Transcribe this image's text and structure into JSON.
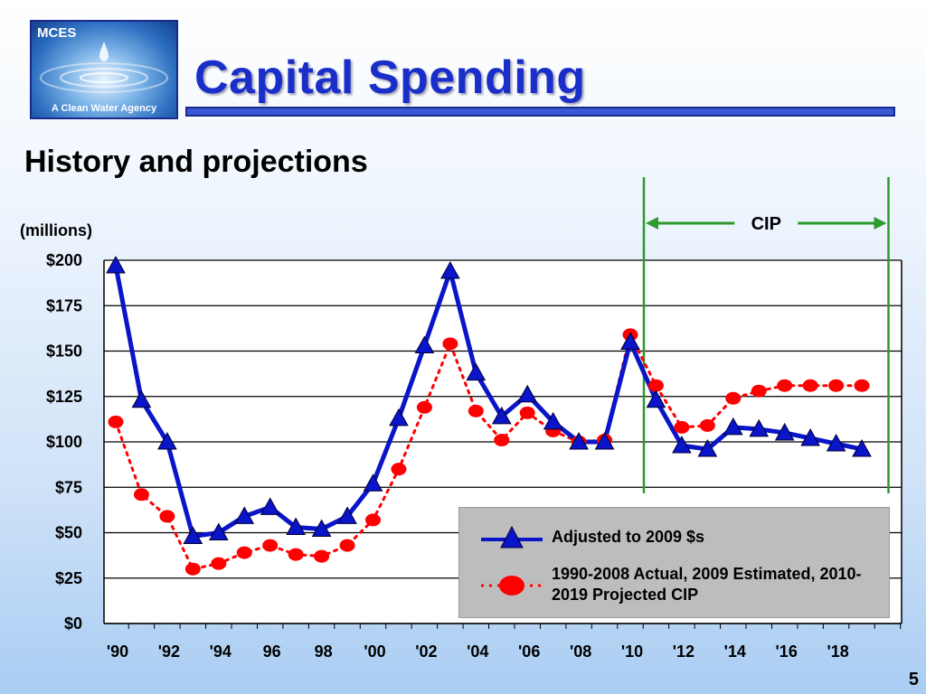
{
  "header": {
    "logo_name": "MCES",
    "logo_tagline": "A Clean Water Agency",
    "title": "Capital Spending",
    "subtitle": "History and projections"
  },
  "page_number": "5",
  "colors": {
    "title": "#1a2ec9",
    "adjusted_series": "#0a14c8",
    "actual_series": "#ff0000",
    "cip_markers": "#2e9a2e"
  },
  "chart_data": {
    "type": "line",
    "units_label": "(millions)",
    "ylim": [
      0,
      200
    ],
    "yticks": [
      0,
      25,
      50,
      75,
      100,
      125,
      150,
      175,
      200
    ],
    "ytick_labels": [
      "$0",
      "$25",
      "$50",
      "$75",
      "$100",
      "$125",
      "$150",
      "$175",
      "$200"
    ],
    "xlim": [
      1990,
      2020
    ],
    "xtick_years": [
      1990,
      1992,
      1994,
      1996,
      1998,
      2000,
      2002,
      2004,
      2006,
      2008,
      2010,
      2012,
      2014,
      2016,
      2018
    ],
    "xtick_labels": [
      "'90",
      "'92",
      "'94",
      "96",
      "98",
      "'00",
      "'02",
      "'04",
      "'06",
      "'08",
      "'10",
      "'12",
      "'14",
      "'16",
      "'18"
    ],
    "grid": "horizontal",
    "legend_position": "bottom-right",
    "cip": {
      "label": "CIP",
      "start": 2010,
      "end": 2020
    },
    "series": [
      {
        "name": "Adjusted to 2009 $s",
        "style": "solid-triangle",
        "x": [
          1990,
          1991,
          1992,
          1993,
          1994,
          1995,
          1996,
          1997,
          1998,
          1999,
          2000,
          2001,
          2002,
          2003,
          2004,
          2005,
          2006,
          2007,
          2008,
          2009,
          2010,
          2011,
          2012,
          2013,
          2014,
          2015,
          2016,
          2017,
          2018,
          2019
        ],
        "values": [
          197,
          123,
          100,
          48,
          50,
          59,
          64,
          53,
          52,
          59,
          77,
          113,
          153,
          194,
          138,
          114,
          126,
          111,
          100,
          100,
          155,
          123,
          98,
          96,
          108,
          107,
          105,
          102,
          99,
          96
        ]
      },
      {
        "name": "1990-2008 Actual, 2009 Estimated, 2010-2019 Projected CIP",
        "style": "dotted-circle",
        "x": [
          1990,
          1991,
          1992,
          1993,
          1994,
          1995,
          1996,
          1997,
          1998,
          1999,
          2000,
          2001,
          2002,
          2003,
          2004,
          2005,
          2006,
          2007,
          2008,
          2009,
          2010,
          2011,
          2012,
          2013,
          2014,
          2015,
          2016,
          2017,
          2018,
          2019
        ],
        "values": [
          111,
          71,
          59,
          30,
          33,
          39,
          43,
          38,
          37,
          43,
          57,
          85,
          119,
          154,
          117,
          101,
          116,
          106,
          100,
          101,
          159,
          131,
          108,
          109,
          124,
          128,
          131,
          131,
          131,
          131
        ]
      }
    ]
  }
}
